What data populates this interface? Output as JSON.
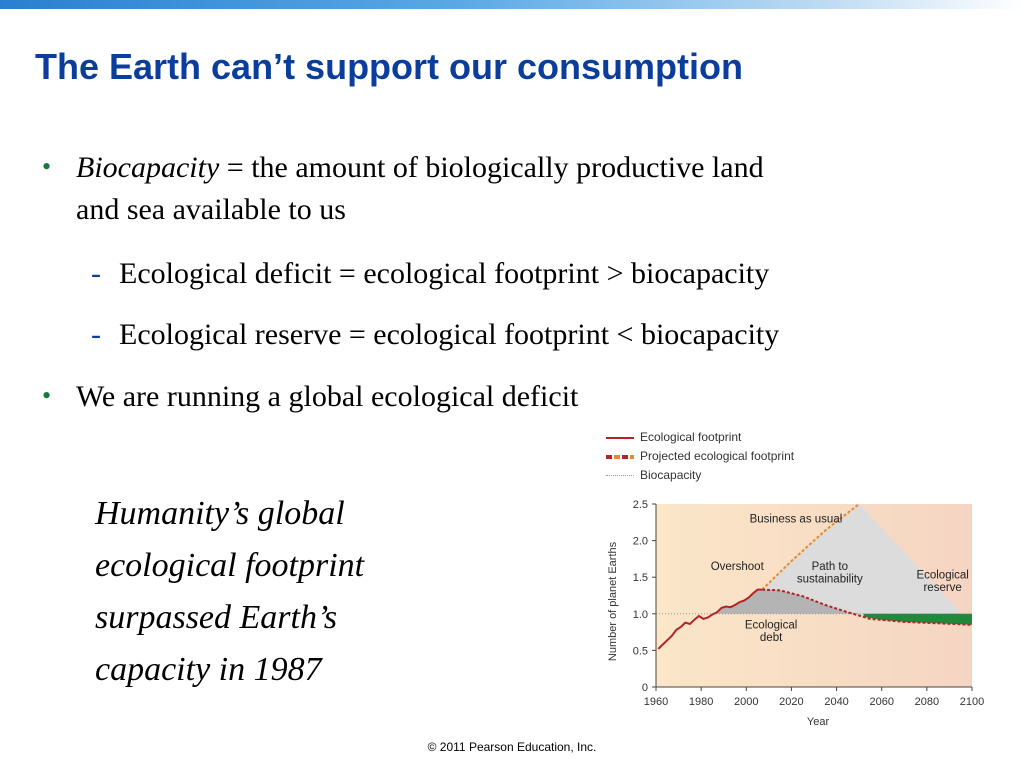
{
  "slide": {
    "title": "The Earth can’t support our consumption",
    "bullet1_term": "Biocapacity",
    "bullet1_rest": " = the amount of biologically productive land",
    "bullet1_line2": "and sea available to us",
    "sub1": "Ecological deficit = ecological footprint > biocapacity",
    "sub2": "Ecological reserve = ecological footprint < biocapacity",
    "bullet2": "We are running a global ecological deficit",
    "caption": "Humanity’s global ecological footprint surpassed Earth’s capacity in 1987",
    "copyright": "© 2011 Pearson Education, Inc.",
    "bullet_color": "#1a7a3a",
    "title_color": "#0a3d9c"
  },
  "chart_data": {
    "type": "line",
    "xlabel": "Year",
    "ylabel": "Number of planet Earths",
    "xlim": [
      1960,
      2100
    ],
    "ylim": [
      0,
      2.5
    ],
    "x_ticks": [
      "1960",
      "1980",
      "2000",
      "2020",
      "2040",
      "2060",
      "2080",
      "2100"
    ],
    "y_ticks": [
      "0",
      "0.5",
      "1.0",
      "1.5",
      "2.0",
      "2.5"
    ],
    "legend": [
      {
        "label": "Ecological footprint",
        "color": "#b0242a",
        "style": "solid"
      },
      {
        "label": "Projected ecological footprint",
        "color": "#e8892b",
        "style": "dashed"
      },
      {
        "label": "Biocapacity",
        "color": "#bfbfbf",
        "style": "dotted"
      }
    ],
    "series": [
      {
        "name": "Ecological footprint",
        "color": "#b0242a",
        "x": [
          1961,
          1963,
          1965,
          1967,
          1969,
          1971,
          1973,
          1975,
          1977,
          1979,
          1981,
          1983,
          1985,
          1987,
          1989,
          1991,
          1993,
          1995,
          1997,
          1999,
          2001,
          2003,
          2005,
          2007
        ],
        "y": [
          0.52,
          0.58,
          0.64,
          0.7,
          0.78,
          0.82,
          0.88,
          0.86,
          0.92,
          0.97,
          0.93,
          0.95,
          0.99,
          1.02,
          1.08,
          1.1,
          1.09,
          1.12,
          1.16,
          1.18,
          1.22,
          1.28,
          1.33,
          1.33
        ]
      },
      {
        "name": "Projected ecological footprint",
        "color": "#e8892b",
        "x": [
          2007,
          2020,
          2035,
          2050
        ],
        "y": [
          1.33,
          1.72,
          2.14,
          2.5
        ]
      },
      {
        "name": "Path to sustainability",
        "color": "#b0242a",
        "x": [
          2007,
          2015,
          2025,
          2035,
          2045,
          2055,
          2070,
          2085,
          2100
        ],
        "y": [
          1.33,
          1.32,
          1.24,
          1.12,
          1.02,
          0.93,
          0.89,
          0.87,
          0.85
        ]
      },
      {
        "name": "Biocapacity",
        "color": "#bfbfbf",
        "x": [
          1960,
          2100
        ],
        "y": [
          1.0,
          1.0
        ]
      }
    ],
    "annotations": [
      {
        "text": "Business as usual",
        "x": 2022,
        "y": 2.25
      },
      {
        "text": "Overshoot",
        "x": 1996,
        "y": 1.6
      },
      {
        "text": "Path to",
        "x": 2037,
        "y": 1.6
      },
      {
        "text": "sustainability",
        "x": 2037,
        "y": 1.43
      },
      {
        "text": "Ecological",
        "x": 2087,
        "y": 1.48
      },
      {
        "text": "reserve",
        "x": 2087,
        "y": 1.31
      },
      {
        "text": "Ecological",
        "x": 2011,
        "y": 0.8
      },
      {
        "text": "debt",
        "x": 2011,
        "y": 0.63
      }
    ],
    "region_colors": {
      "background_left": "#fbe6c8",
      "background_right": "#f5d5c2",
      "above_footprint": "#dcdcdc",
      "debt": "#b4b4b4",
      "reserve": "#1f8a3c",
      "axis": "#444444"
    }
  }
}
